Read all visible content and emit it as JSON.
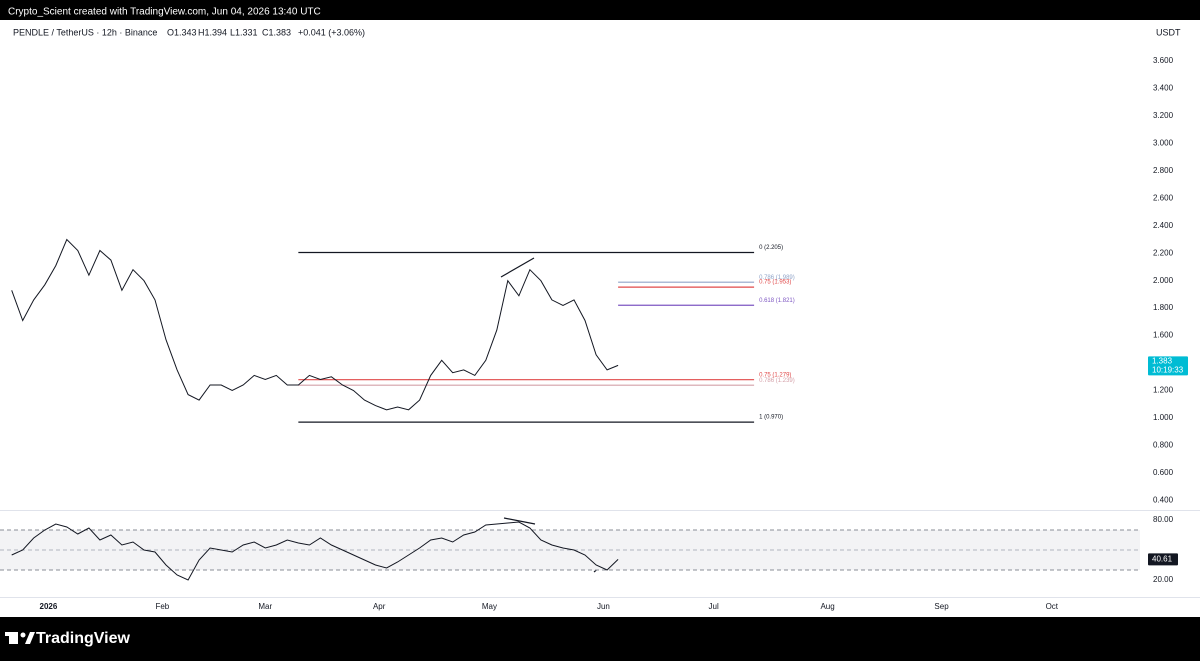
{
  "header": {
    "credit": "Crypto_Scient created with TradingView.com, Jun 04, 2026 13:40 UTC",
    "symbol": "PENDLE / TetherUS · 12h · Binance",
    "ohlc": [
      "O1.343",
      "H1.394",
      "L1.331",
      "C1.383"
    ],
    "change": "+0.041 (+3.06%)",
    "unit": "USDT",
    "countdown": "10:19:33"
  },
  "footer": {
    "brand": "TradingView"
  },
  "chart_data": [
    {
      "type": "line",
      "color": "#131722",
      "grid": false,
      "x": [
        -10,
        -7,
        -4,
        -1,
        2,
        5,
        8,
        11,
        14,
        17,
        20,
        23,
        26,
        29,
        32,
        35,
        38,
        41,
        44,
        47,
        50,
        53,
        56,
        59,
        62,
        65,
        68,
        71,
        74,
        77,
        80,
        83,
        86,
        89,
        92,
        95,
        98,
        101,
        104,
        107,
        110,
        113,
        116,
        119,
        122,
        125,
        128,
        131,
        134,
        137,
        140,
        143,
        146,
        149,
        152,
        155
      ],
      "values": [
        1.93,
        1.71,
        1.86,
        1.97,
        2.11,
        2.3,
        2.22,
        2.04,
        2.22,
        2.15,
        1.93,
        2.08,
        2.0,
        1.86,
        1.57,
        1.35,
        1.17,
        1.13,
        1.24,
        1.24,
        1.2,
        1.24,
        1.31,
        1.28,
        1.31,
        1.24,
        1.24,
        1.31,
        1.28,
        1.3,
        1.24,
        1.2,
        1.13,
        1.09,
        1.06,
        1.08,
        1.06,
        1.13,
        1.31,
        1.42,
        1.33,
        1.35,
        1.31,
        1.42,
        1.64,
        2.0,
        1.89,
        2.08,
        2.0,
        1.86,
        1.82,
        1.86,
        1.71,
        1.46,
        1.35,
        1.383
      ],
      "xlim": [
        -11,
        297
      ],
      "ylim": [
        0.33,
        3.84
      ],
      "yticks": [
        {
          "value": 0.4,
          "label": "0.400"
        },
        {
          "value": 0.6,
          "label": "0.600"
        },
        {
          "value": 0.8,
          "label": "0.800"
        },
        {
          "value": 1.0,
          "label": "1.000"
        },
        {
          "value": 1.2,
          "label": "1.200"
        },
        {
          "value": 1.4,
          "label": "1.400"
        },
        {
          "value": 1.6,
          "label": "1.600"
        },
        {
          "value": 1.8,
          "label": "1.800"
        },
        {
          "value": 2.0,
          "label": "2.000"
        },
        {
          "value": 2.2,
          "label": "2.200"
        },
        {
          "value": 2.4,
          "label": "2.400"
        },
        {
          "value": 2.6,
          "label": "2.600"
        },
        {
          "value": 2.8,
          "label": "2.800"
        },
        {
          "value": 3.0,
          "label": "3.000"
        },
        {
          "value": 3.2,
          "label": "3.200"
        },
        {
          "value": 3.4,
          "label": "3.400"
        },
        {
          "value": 3.6,
          "label": "3.600"
        }
      ],
      "fib_levels": [
        {
          "label": "0 (2.205)",
          "value": 2.205,
          "start": 68,
          "end": 192,
          "color": "#131722"
        },
        {
          "label": "0.786 (1.989)",
          "value": 1.989,
          "start": 155,
          "end": 192,
          "color": "#90a4c8"
        },
        {
          "label": "0.75 (1.953)",
          "value": 1.953,
          "start": 155,
          "end": 192,
          "color": "#e04848"
        },
        {
          "label": "0.618 (1.821)",
          "value": 1.821,
          "start": 155,
          "end": 192,
          "color": "#7e57c2"
        },
        {
          "label": "0.75 (1.279)",
          "value": 1.279,
          "start": 68,
          "end": 192,
          "color": "#e04848"
        },
        {
          "label": "0.786 (1.239)",
          "value": 1.239,
          "start": 68,
          "end": 192,
          "color": "#d4a0a8"
        },
        {
          "label": "1 (0.970)",
          "value": 0.97,
          "start": 68,
          "end": 192,
          "color": "#131722"
        }
      ]
    },
    {
      "type": "line",
      "color": "#131722",
      "x": [
        -10,
        -7,
        -4,
        -1,
        2,
        5,
        8,
        11,
        14,
        17,
        20,
        23,
        26,
        29,
        32,
        35,
        38,
        41,
        44,
        47,
        50,
        53,
        56,
        59,
        62,
        65,
        68,
        71,
        74,
        77,
        80,
        83,
        86,
        89,
        92,
        95,
        98,
        101,
        104,
        107,
        110,
        113,
        116,
        119,
        122,
        125,
        128,
        131,
        134,
        137,
        140,
        143,
        146,
        149,
        152,
        155
      ],
      "values": [
        45,
        50,
        62,
        70,
        76,
        73,
        66,
        72,
        60,
        65,
        55,
        58,
        50,
        48,
        35,
        25,
        20,
        40,
        52,
        50,
        48,
        55,
        58,
        52,
        55,
        60,
        57,
        55,
        62,
        55,
        50,
        45,
        40,
        35,
        32,
        38,
        45,
        52,
        60,
        62,
        58,
        65,
        68,
        75,
        76,
        77,
        78,
        72,
        60,
        55,
        52,
        50,
        45,
        35,
        30,
        40.61
      ],
      "xlim": [
        -11,
        297
      ],
      "ylim": [
        4,
        88
      ],
      "yticks": [
        {
          "value": 80,
          "label": "80.00"
        },
        {
          "value": 20,
          "label": "20.00"
        }
      ],
      "bands": [
        70,
        30
      ],
      "midline": 50,
      "xticks": [
        {
          "value": 0,
          "label": "2026"
        },
        {
          "value": 31,
          "label": "Feb"
        },
        {
          "value": 59,
          "label": "Mar"
        },
        {
          "value": 90,
          "label": "Apr"
        },
        {
          "value": 120,
          "label": "May"
        },
        {
          "value": 151,
          "label": "Jun"
        },
        {
          "value": 181,
          "label": "Jul"
        },
        {
          "value": 212,
          "label": "Aug"
        },
        {
          "value": 243,
          "label": "Sep"
        },
        {
          "value": 273,
          "label": "Oct"
        }
      ]
    }
  ]
}
